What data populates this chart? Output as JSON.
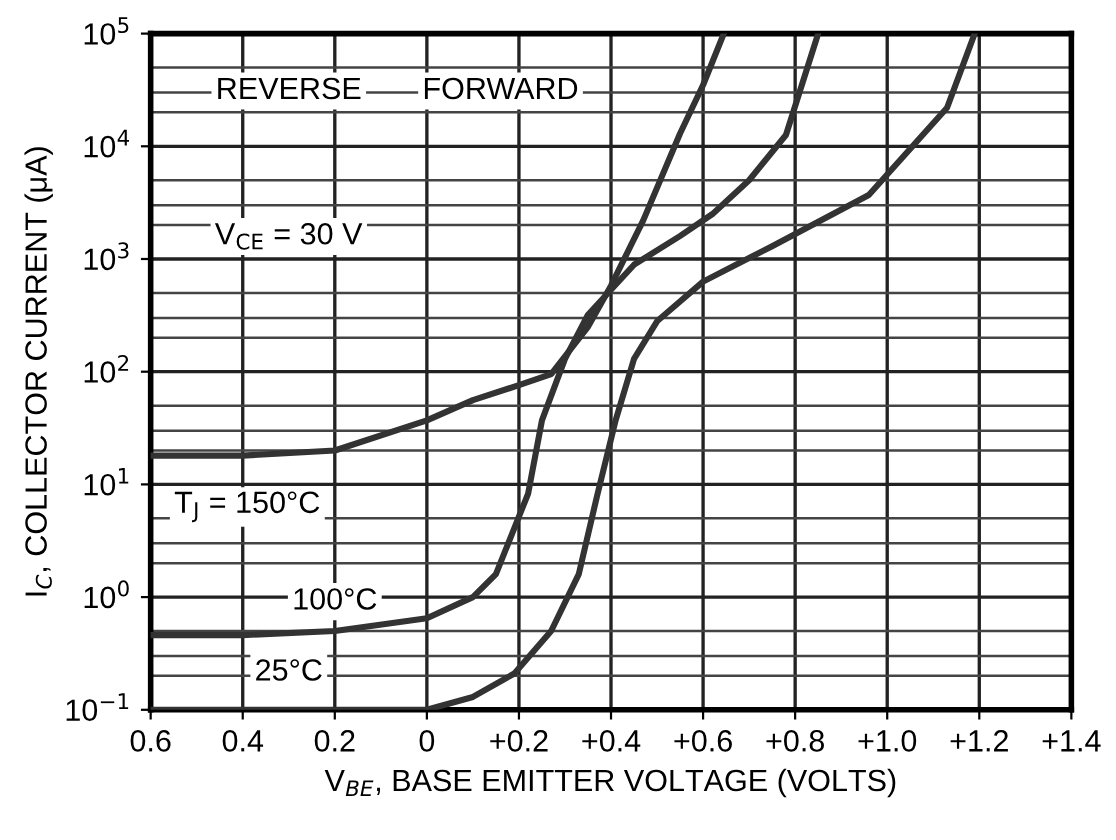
{
  "chart_data": {
    "type": "line",
    "xlabel": "V$_{BE}$, BASE EMITTER VOLTAGE (VOLTS)",
    "ylabel": "I$_{C}$, COLLECTOR CURRENT (μA)",
    "log": "y",
    "grid": true,
    "line_style": "solid",
    "marker": "none",
    "xlim": [
      -0.6,
      1.4
    ],
    "xticks": [
      {
        "value": -0.6,
        "label": "0.6"
      },
      {
        "value": -0.4,
        "label": "0.4"
      },
      {
        "value": -0.2,
        "label": "0.2"
      },
      0,
      {
        "value": 0.2,
        "label": "+0.2"
      },
      {
        "value": 0.4,
        "label": "+0.4"
      },
      {
        "value": 0.6,
        "label": "+0.6"
      },
      {
        "value": 0.8,
        "label": "+0.8"
      },
      {
        "value": 1.0,
        "label": "+1.0"
      },
      {
        "value": 1.2,
        "label": "+1.2"
      },
      {
        "value": 1.4,
        "label": "+1.4"
      }
    ],
    "ylim": [
      0.1,
      100000
    ],
    "yticks": [
      {
        "value": 0.1,
        "label": "10$^{−1}$"
      },
      {
        "value": 1,
        "label": "10$^{0}$"
      },
      {
        "value": 10,
        "label": "10$^{1}$"
      },
      {
        "value": 100,
        "label": "10$^{2}$"
      },
      {
        "value": 1000,
        "label": "10$^{3}$"
      },
      {
        "value": 10000,
        "label": "10$^{4}$"
      },
      {
        "value": 100000,
        "label": "10$^{5}$"
      }
    ],
    "series": [
      {
        "color": "#333333",
        "x": [
          -0.6,
          -0.4,
          -0.2,
          0,
          0.1,
          0.2,
          0.27,
          0.35,
          0.4,
          0.47,
          0.55,
          0.6,
          0.645
        ],
        "values": [
          18,
          18,
          20,
          37,
          56,
          76,
          95,
          250,
          580,
          2200,
          13000,
          35000,
          100000
        ]
      },
      {
        "color": "#333333",
        "x": [
          -0.6,
          -0.4,
          -0.2,
          0,
          0.1,
          0.15,
          0.22,
          0.25,
          0.3,
          0.35,
          0.45,
          0.55,
          0.62,
          0.7,
          0.78,
          0.85
        ],
        "values": [
          0.46,
          0.46,
          0.5,
          0.65,
          1.0,
          1.6,
          8.3,
          37,
          130,
          320,
          890,
          1600,
          2500,
          5000,
          12600,
          100000
        ]
      },
      {
        "color": "#333333",
        "x": [
          -0.6,
          0,
          0.1,
          0.19,
          0.27,
          0.33,
          0.37,
          0.41,
          0.45,
          0.5,
          0.6,
          0.75,
          0.96,
          1.13,
          1.19
        ],
        "values": [
          0.1,
          0.1,
          0.13,
          0.21,
          0.5,
          1.6,
          8,
          37,
          130,
          280,
          630,
          1300,
          3700,
          22000,
          100000
        ]
      }
    ],
    "annotations": [
      "REVERSE",
      "FORWARD",
      "V$_{CE}$ = 30 V",
      "T$_{J}$ = 150°C",
      "100°C",
      "25°C"
    ]
  }
}
